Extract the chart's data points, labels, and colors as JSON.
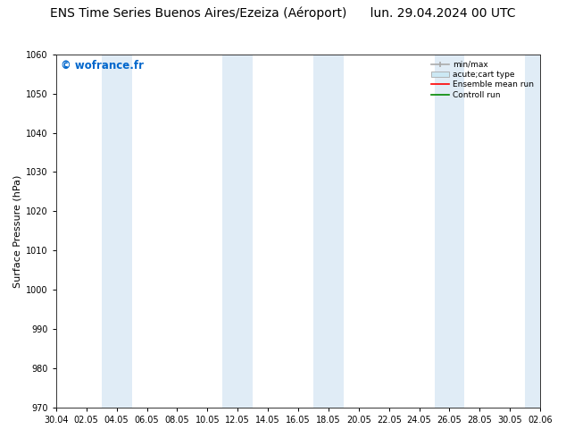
{
  "title_left": "ENS Time Series Buenos Aires/Ezeiza (Aéroport)",
  "title_right": "lun. 29.04.2024 00 UTC",
  "ylabel": "Surface Pressure (hPa)",
  "ylim": [
    970,
    1060
  ],
  "yticks": [
    970,
    980,
    990,
    1000,
    1010,
    1020,
    1030,
    1040,
    1050,
    1060
  ],
  "xtick_labels": [
    "30.04",
    "02.05",
    "04.05",
    "06.05",
    "08.05",
    "10.05",
    "12.05",
    "14.05",
    "16.05",
    "18.05",
    "20.05",
    "22.05",
    "24.05",
    "26.05",
    "28.05",
    "30.05",
    "02.06"
  ],
  "watermark": "© wofrance.fr",
  "watermark_color": "#0066cc",
  "background_color": "#ffffff",
  "plot_bg_color": "#ffffff",
  "shaded_band_color": "#cce0f0",
  "shaded_band_alpha": 0.6,
  "legend_entries": [
    "min/max",
    "acute;cart type",
    "Ensemble mean run",
    "Controll run"
  ],
  "legend_line_color": "#aaaaaa",
  "legend_patch_color": "#cce8f4",
  "legend_red": "#ff0000",
  "legend_green": "#008800",
  "title_fontsize": 10,
  "tick_fontsize": 7,
  "ylabel_fontsize": 8
}
